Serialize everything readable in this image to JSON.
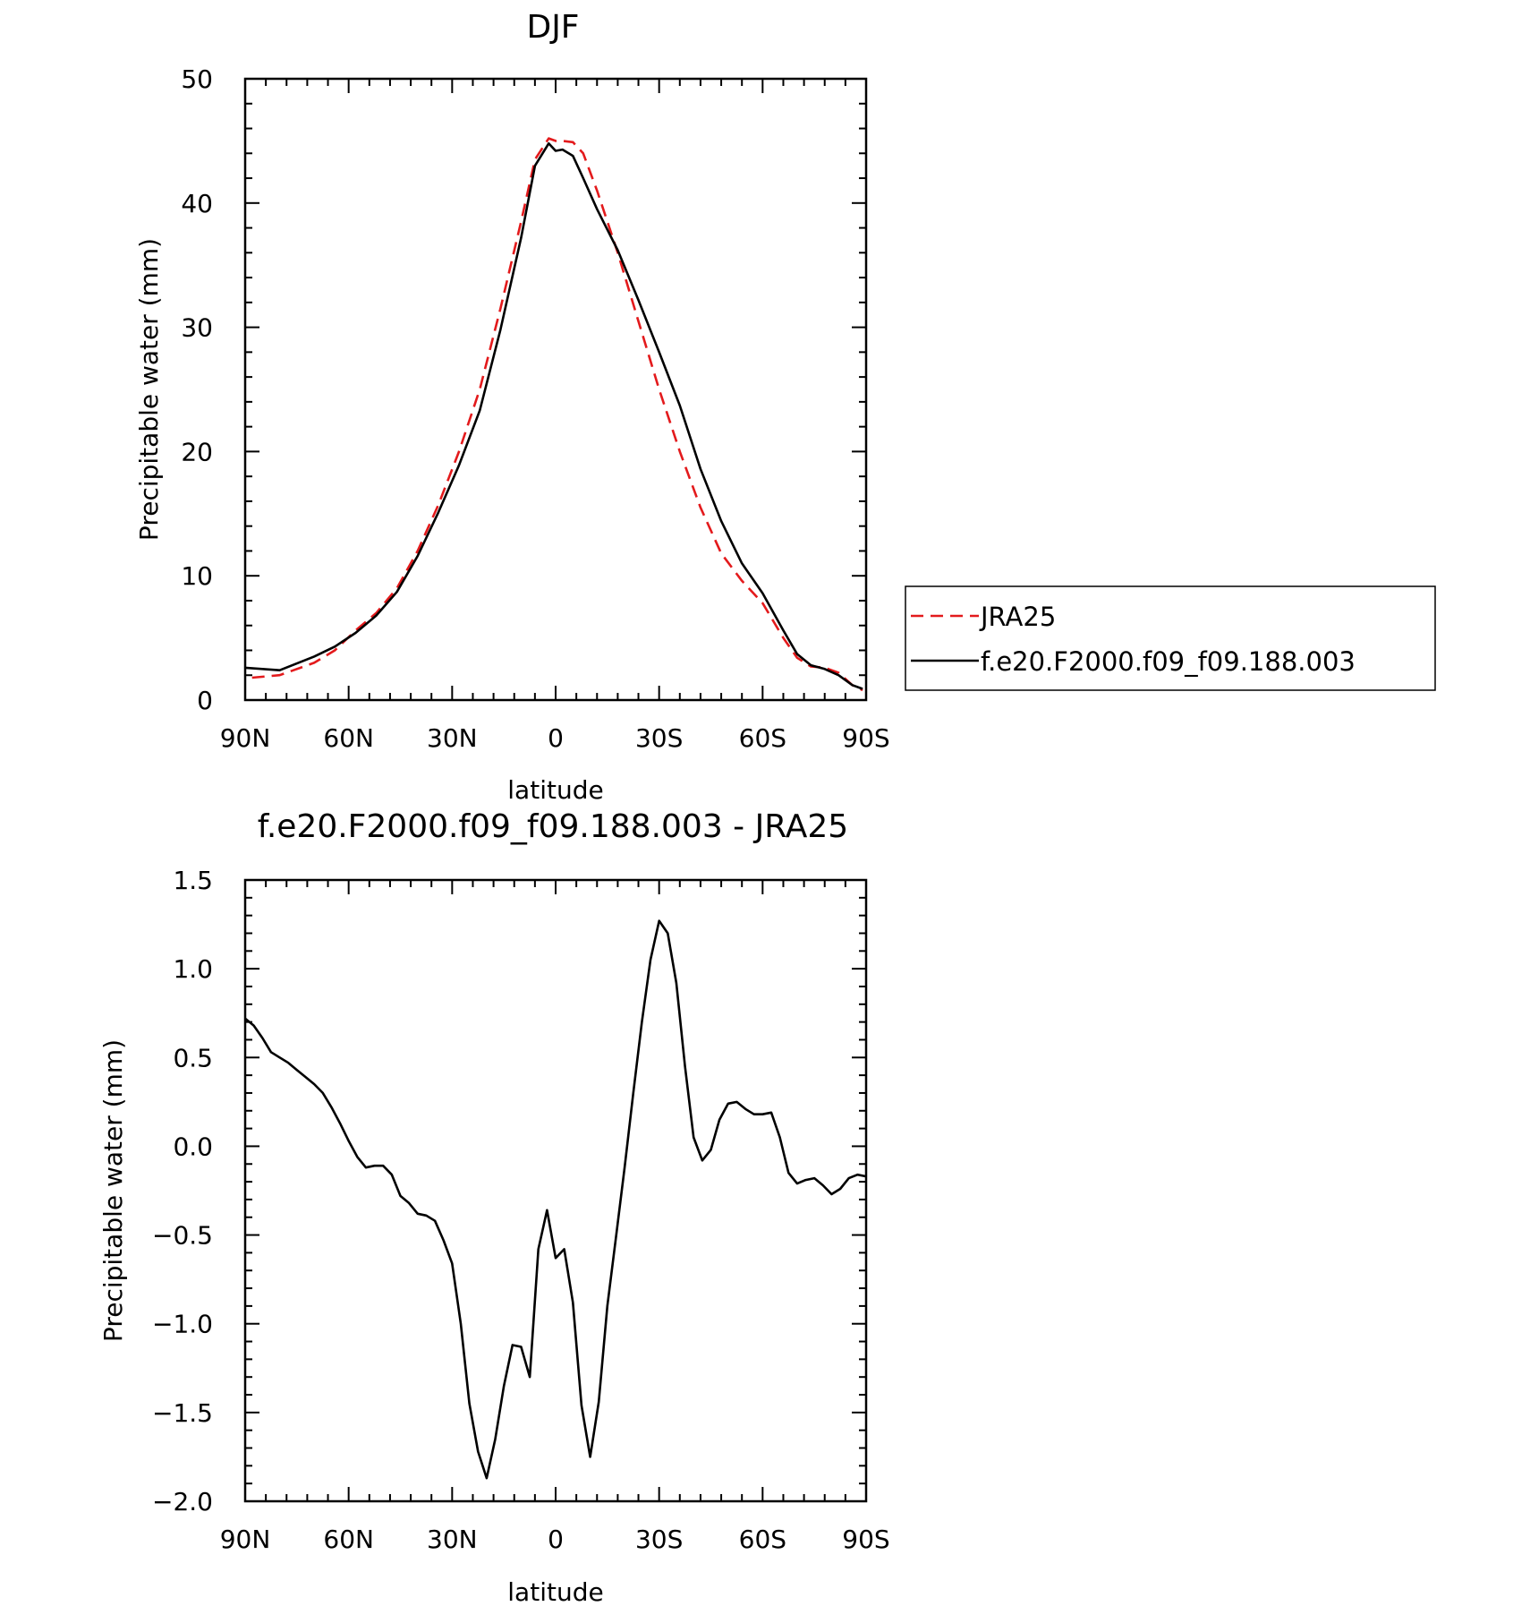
{
  "chart_data": [
    {
      "type": "line",
      "title": "DJF",
      "xlabel": "latitude",
      "ylabel": "Precipitable water (mm)",
      "xlim": [
        90,
        -90
      ],
      "ylim": [
        0,
        50
      ],
      "x_ticks": [
        {
          "value": 90,
          "label": "90N"
        },
        {
          "value": 60,
          "label": "60N"
        },
        {
          "value": 30,
          "label": "30N"
        },
        {
          "value": 0,
          "label": "0"
        },
        {
          "value": -30,
          "label": "30S"
        },
        {
          "value": -60,
          "label": "60S"
        },
        {
          "value": -90,
          "label": "90S"
        }
      ],
      "y_ticks": [
        {
          "value": 0,
          "label": "0"
        },
        {
          "value": 10,
          "label": "10"
        },
        {
          "value": 20,
          "label": "20"
        },
        {
          "value": 30,
          "label": "30"
        },
        {
          "value": 40,
          "label": "40"
        },
        {
          "value": 50,
          "label": "50"
        }
      ],
      "legend": {
        "placement": "right",
        "entries": [
          {
            "name": "JRA25",
            "color": "#e31a1c",
            "dash": "dashed"
          },
          {
            "name": "f.e20.F2000.f09_f09.188.003",
            "color": "#000000",
            "dash": "solid"
          }
        ]
      },
      "series": [
        {
          "name": "JRA25",
          "color": "#e31a1c",
          "x": [
            88,
            80,
            70,
            64,
            58,
            52,
            46,
            40,
            34,
            28,
            22,
            16,
            10,
            6,
            2,
            0,
            -2,
            -5,
            -8,
            -12,
            -18,
            -24,
            -30,
            -36,
            -42,
            -48,
            -54,
            -60,
            -66,
            -70,
            -74,
            -78,
            -82,
            -86,
            -89
          ],
          "y": [
            1.8,
            2.0,
            3.0,
            4.0,
            5.6,
            7.0,
            9.0,
            12.0,
            15.7,
            20.0,
            25.0,
            31.5,
            38.5,
            43.5,
            45.2,
            45.0,
            45.0,
            44.9,
            44.0,
            41.0,
            36.0,
            30.5,
            25.0,
            20.0,
            15.5,
            11.8,
            9.6,
            7.8,
            5.0,
            3.4,
            2.7,
            2.6,
            2.2,
            1.2,
            0.8
          ]
        },
        {
          "name": "f.e20.F2000.f09_f09.188.003",
          "color": "#000000",
          "x": [
            90,
            80,
            70,
            64,
            58,
            52,
            46,
            40,
            34,
            28,
            22,
            16,
            10,
            6,
            2,
            0,
            -2,
            -5,
            -8,
            -12,
            -18,
            -24,
            -30,
            -36,
            -42,
            -48,
            -54,
            -60,
            -66,
            -70,
            -74,
            -78,
            -82,
            -86,
            -89
          ],
          "y": [
            2.6,
            2.4,
            3.5,
            4.3,
            5.4,
            6.8,
            8.7,
            11.6,
            15.1,
            18.9,
            23.3,
            29.8,
            37.2,
            43.0,
            44.8,
            44.2,
            44.3,
            43.8,
            42.0,
            39.5,
            36.2,
            32.2,
            28.0,
            23.7,
            18.6,
            14.4,
            11.0,
            8.6,
            5.6,
            3.7,
            2.8,
            2.5,
            2.0,
            1.2,
            0.9
          ]
        }
      ]
    },
    {
      "type": "line",
      "title": "f.e20.F2000.f09_f09.188.003 - JRA25",
      "xlabel": "latitude",
      "ylabel": "Precipitable water (mm)",
      "xlim": [
        90,
        -90
      ],
      "ylim": [
        -2.0,
        1.5
      ],
      "x_ticks": [
        {
          "value": 90,
          "label": "90N"
        },
        {
          "value": 60,
          "label": "60N"
        },
        {
          "value": 30,
          "label": "30N"
        },
        {
          "value": 0,
          "label": "0"
        },
        {
          "value": -30,
          "label": "30S"
        },
        {
          "value": -60,
          "label": "60S"
        },
        {
          "value": -90,
          "label": "90S"
        }
      ],
      "y_ticks": [
        {
          "value": -2.0,
          "label": "−2.0"
        },
        {
          "value": -1.5,
          "label": "−1.5"
        },
        {
          "value": -1.0,
          "label": "−1.0"
        },
        {
          "value": -0.5,
          "label": "−0.5"
        },
        {
          "value": 0.0,
          "label": "0.0"
        },
        {
          "value": 0.5,
          "label": "0.5"
        },
        {
          "value": 1.0,
          "label": "1.0"
        },
        {
          "value": 1.5,
          "label": "1.5"
        }
      ],
      "series": [
        {
          "name": "",
          "color": "#000000",
          "x": [
            90,
            87.5,
            85,
            82.5,
            80,
            77.5,
            75,
            72.5,
            70,
            67.5,
            65,
            62.5,
            60,
            57.5,
            55,
            52.5,
            50,
            47.5,
            45,
            42.5,
            40,
            37.5,
            35,
            32.5,
            30,
            27.5,
            25,
            22.5,
            20,
            17.5,
            15,
            12.5,
            10,
            7.5,
            5,
            2.5,
            0,
            -2.5,
            -5,
            -7.5,
            -10,
            -12.5,
            -15,
            -17.5,
            -20,
            -22.5,
            -25,
            -27.5,
            -30,
            -32.5,
            -35,
            -37.5,
            -40,
            -42.5,
            -45,
            -47.5,
            -50,
            -52.5,
            -55,
            -57.5,
            -60,
            -62.5,
            -65,
            -67.5,
            -70,
            -72.5,
            -75,
            -77.5,
            -80,
            -82.5,
            -85,
            -87.5,
            -90
          ],
          "y": [
            0.72,
            0.68,
            0.61,
            0.53,
            0.5,
            0.47,
            0.43,
            0.39,
            0.35,
            0.3,
            0.22,
            0.13,
            0.03,
            -0.06,
            -0.12,
            -0.11,
            -0.11,
            -0.16,
            -0.28,
            -0.32,
            -0.38,
            -0.39,
            -0.42,
            -0.53,
            -0.66,
            -1.0,
            -1.45,
            -1.72,
            -1.87,
            -1.65,
            -1.35,
            -1.12,
            -1.13,
            -1.3,
            -0.58,
            -0.36,
            -0.63,
            -0.58,
            -0.88,
            -1.46,
            -1.75,
            -1.44,
            -0.9,
            -0.51,
            -0.12,
            0.3,
            0.7,
            1.05,
            1.27,
            1.2,
            0.92,
            0.45,
            0.05,
            -0.08,
            -0.02,
            0.15,
            0.24,
            0.25,
            0.21,
            0.18,
            0.18,
            0.19,
            0.05,
            -0.15,
            -0.21,
            -0.19,
            -0.18,
            -0.22,
            -0.27,
            -0.24,
            -0.18,
            -0.16,
            -0.17
          ]
        }
      ]
    }
  ]
}
